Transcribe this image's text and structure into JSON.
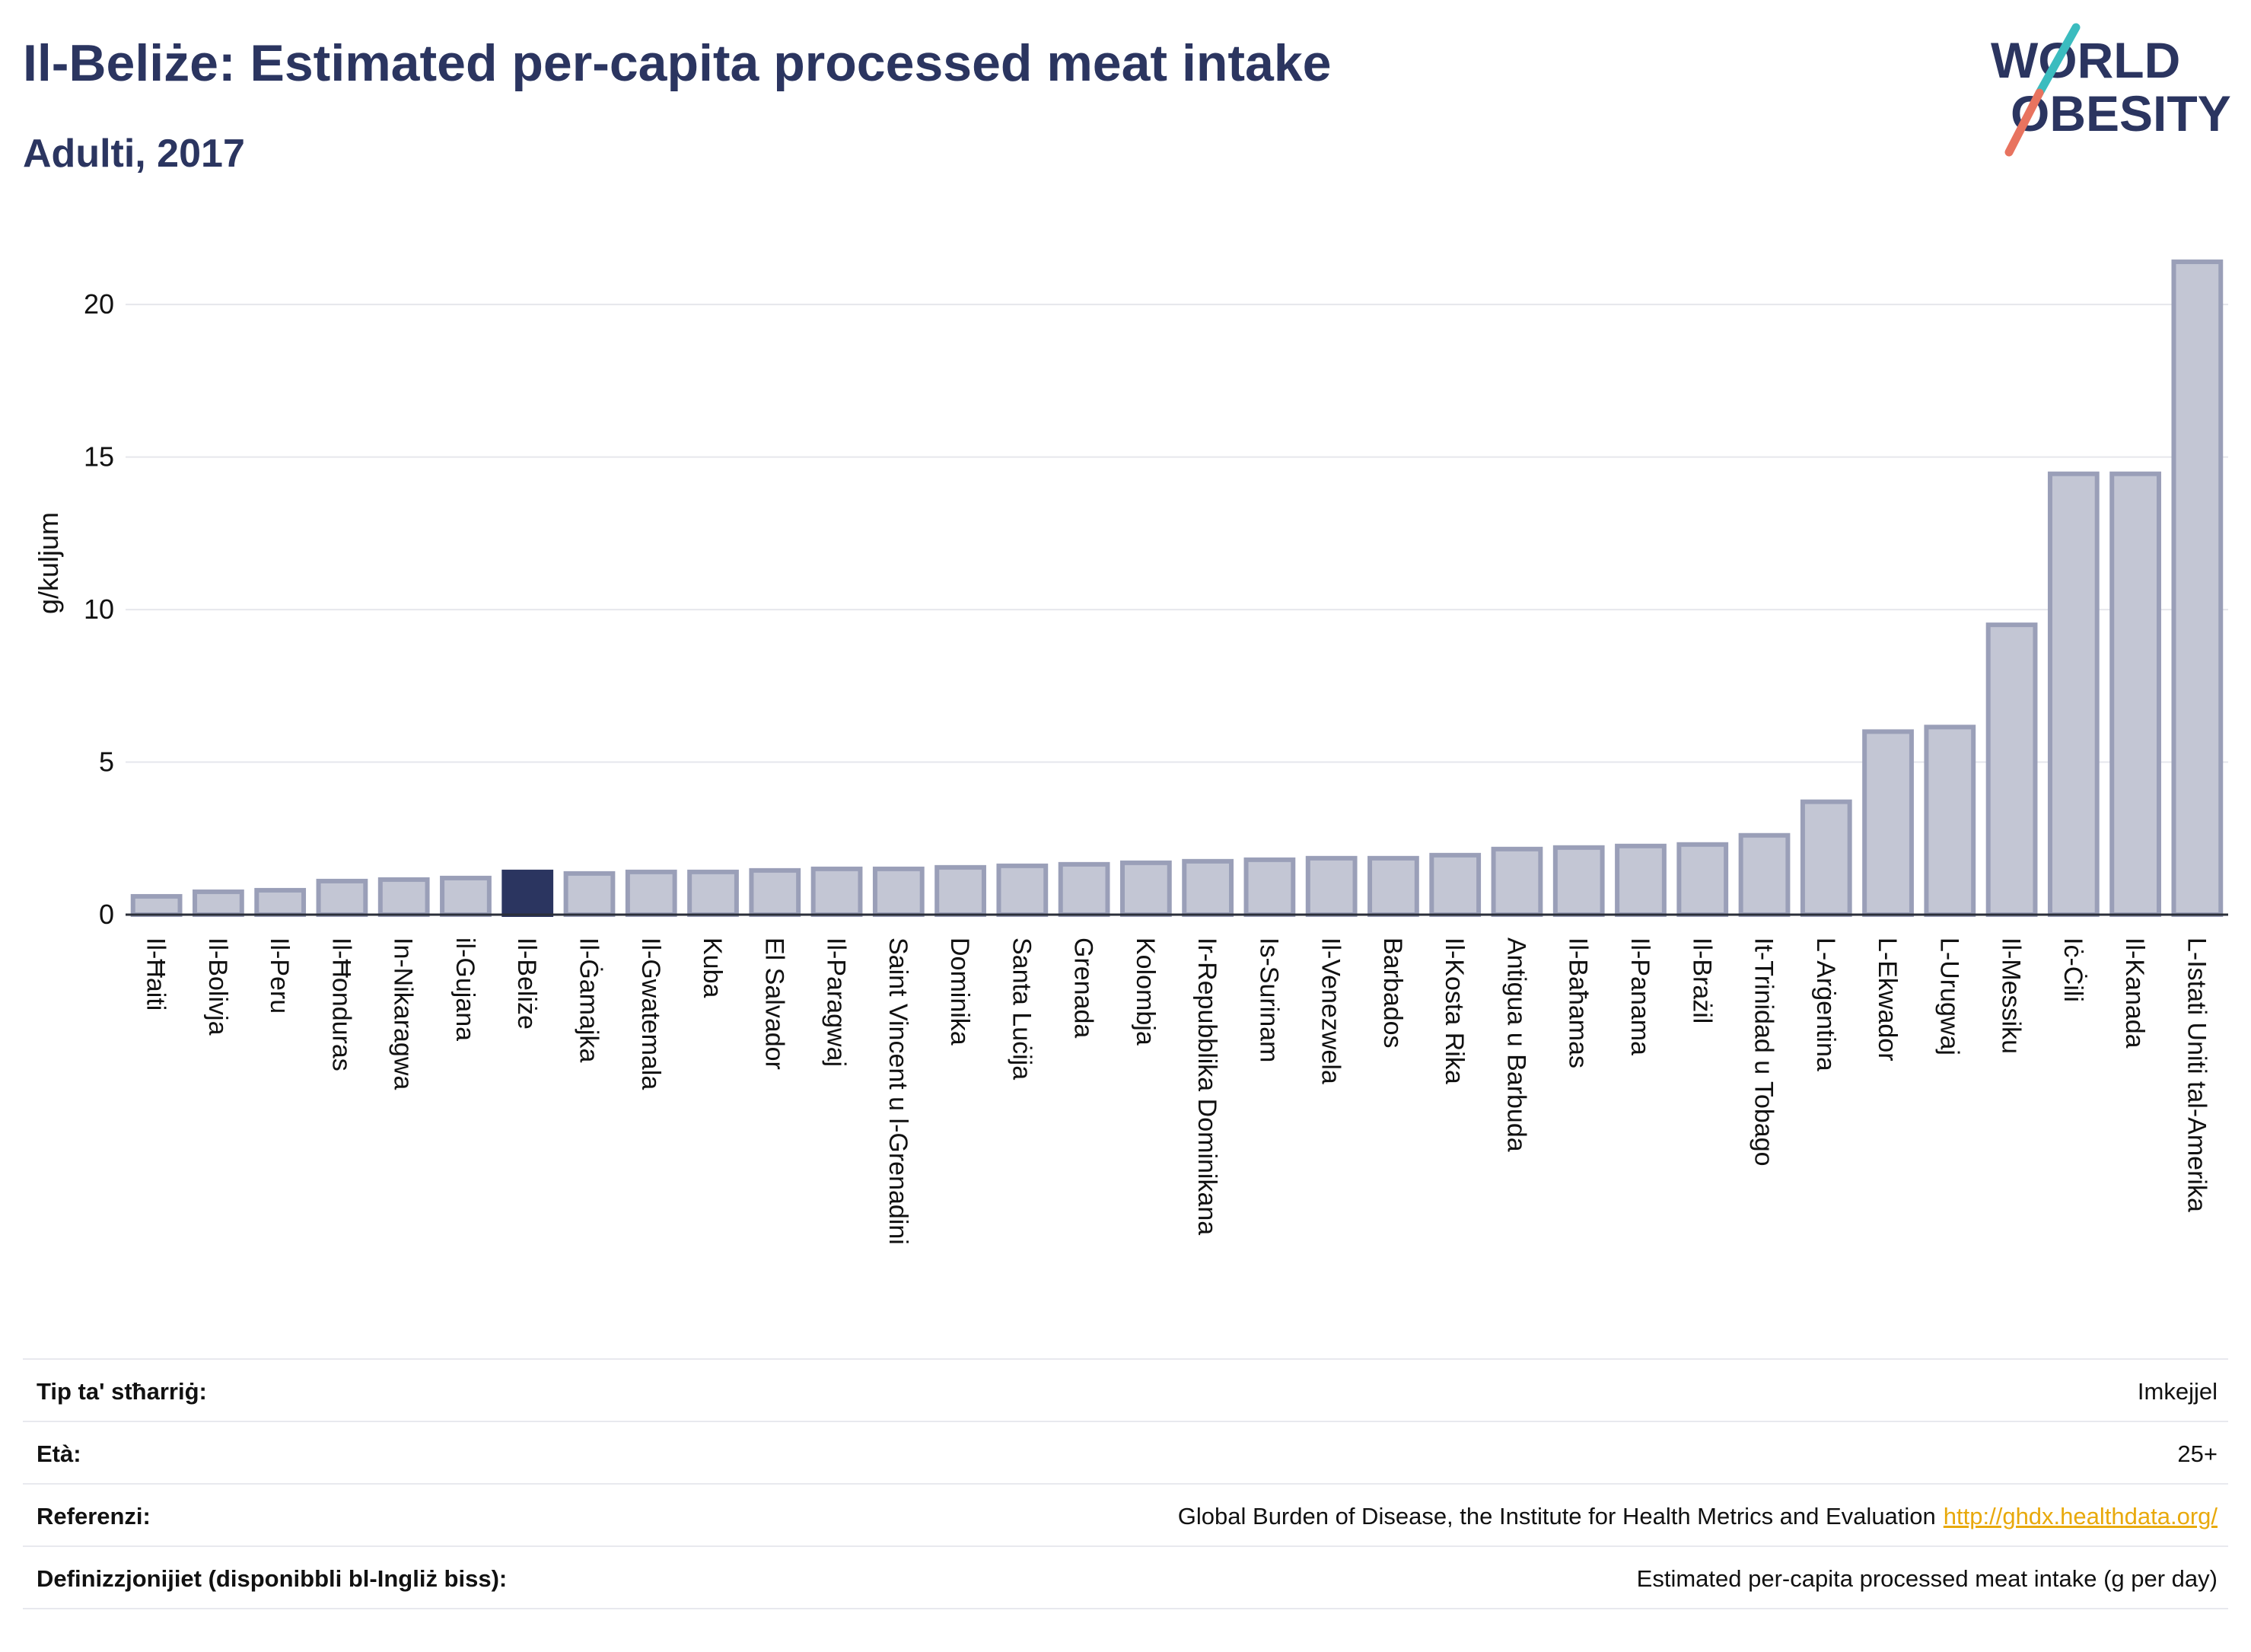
{
  "header": {
    "title": "Il-Beliże: Estimated per-capita processed meat intake",
    "subtitle": "Adulti, 2017"
  },
  "logo": {
    "line1": "WORLD",
    "line2": "OBESITY"
  },
  "colors": {
    "text": "#2b3560",
    "bar": "#c3c6d4",
    "bar_stroke": "#9a9fb8",
    "highlight": "#2b3560",
    "grid": "#e6e7ec",
    "link": "#e8a90c"
  },
  "chart_data": {
    "type": "bar",
    "ylabel": "g/kuljum",
    "ylim": [
      0,
      22
    ],
    "yticks": [
      0,
      5,
      10,
      15,
      20
    ],
    "grid": true,
    "highlight": "Il-Beliże",
    "categories": [
      "Il-Ħaiti",
      "Il-Bolivja",
      "Il-Peru",
      "Il-Ħonduras",
      "In-Nikaragwa",
      "il-Gujana",
      "Il-Beliże",
      "Il-Ġamajka",
      "Il-Gwatemala",
      "Kuba",
      "El Salvador",
      "Il-Paragwaj",
      "Saint Vincent u l-Grenadini",
      "Dominika",
      "Santa Luċija",
      "Grenada",
      "Kolombja",
      "Ir-Repubblika Dominikana",
      "Is-Surinam",
      "Il-Venezwela",
      "Barbados",
      "Il-Kosta Rika",
      "Antigua u Barbuda",
      "Il-Baħamas",
      "Il-Panama",
      "Il-Brażil",
      "It-Trinidad u Tobago",
      "L-Arġentina",
      "L-Ekwador",
      "L-Urugwaj",
      "Il-Messiku",
      "Iċ-Ċili",
      "Il-Kanada",
      "L-Istati Uniti tal-Amerika"
    ],
    "values": [
      0.6,
      0.75,
      0.8,
      1.1,
      1.15,
      1.2,
      1.4,
      1.35,
      1.4,
      1.4,
      1.45,
      1.5,
      1.5,
      1.55,
      1.6,
      1.65,
      1.7,
      1.75,
      1.8,
      1.85,
      1.85,
      1.95,
      2.15,
      2.2,
      2.25,
      2.3,
      2.6,
      3.7,
      6.0,
      6.15,
      9.5,
      14.45,
      14.45,
      21.4
    ]
  },
  "info": {
    "rows": [
      {
        "label": "Tip ta' stħarriġ:",
        "value": "Imkejjel"
      },
      {
        "label": "Età:",
        "value": "25+"
      },
      {
        "label": "Referenzi:",
        "value": "Global Burden of Disease, the Institute for Health Metrics and Evaluation",
        "link": "http://ghdx.healthdata.org/"
      },
      {
        "label": "Definizzjonijiet (disponibbli bl-Ingliż biss):",
        "value": "Estimated per-capita processed meat intake (g per day)"
      }
    ]
  }
}
